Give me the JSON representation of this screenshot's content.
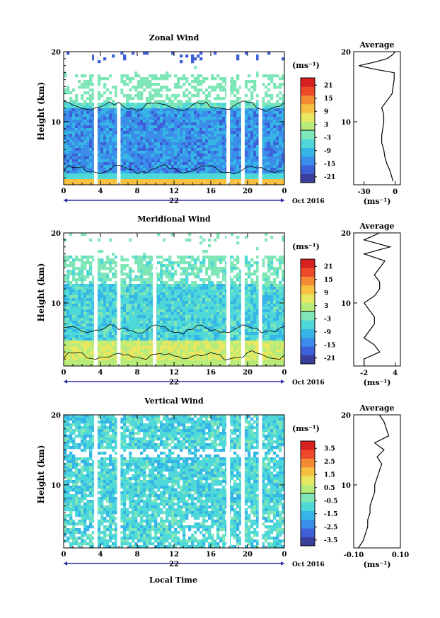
{
  "figure": {
    "time_axis_label": "Local Time",
    "date_label": "Oct 2016",
    "height_axis_label": "Height (km)",
    "unit_label": "(ms⁻¹)",
    "average_title": "Average"
  },
  "chart_data": [
    {
      "type": "heatmap",
      "title": "Zonal Wind",
      "xlabel": "",
      "ylabel": "Height (km)",
      "xticks": [
        "0",
        "4",
        "8",
        "12",
        "16",
        "20",
        "0"
      ],
      "date_tick": "22",
      "xlim": [
        0,
        24
      ],
      "ylim": [
        1,
        20
      ],
      "yticks": [
        "10",
        "20"
      ],
      "colorbar": {
        "label": "(ms⁻¹)",
        "range": [
          -24,
          24
        ],
        "ticks": [
          "21",
          "15",
          "9",
          "3",
          "-3",
          "-9",
          "-15",
          "-21"
        ],
        "colors": [
          "#3b3f9a",
          "#3d5fd8",
          "#3a8de8",
          "#35b6e6",
          "#4fd8d8",
          "#7fe6b8",
          "#b8ec7a",
          "#e8e860",
          "#f6c040",
          "#f48a32",
          "#ee4a2a",
          "#d82020"
        ]
      },
      "gaps_hours": [
        3.3,
        5.8,
        17.7,
        19.3,
        21.2
      ],
      "average_profile": {
        "title": "Average",
        "xticks": [
          "-30",
          "0"
        ],
        "xlim": [
          -40,
          5
        ],
        "height": [
          1.5,
          3,
          4,
          5,
          6,
          7,
          8,
          9,
          10,
          11,
          12,
          13,
          14,
          15,
          16,
          17,
          17.5,
          18,
          18.5,
          19,
          19.5,
          20
        ],
        "values": [
          -2,
          -5,
          -8,
          -10,
          -11,
          -13,
          -13,
          -12,
          -11,
          -11,
          -13,
          -8,
          -3,
          -2,
          -1,
          -1,
          -20,
          -35,
          -20,
          -8,
          -3,
          0
        ]
      }
    },
    {
      "type": "heatmap",
      "title": "Meridional Wind",
      "xlabel": "",
      "ylabel": "Height (km)",
      "xticks": [
        "0",
        "4",
        "8",
        "12",
        "16",
        "20",
        "0"
      ],
      "date_tick": "22",
      "xlim": [
        0,
        24
      ],
      "ylim": [
        1,
        20
      ],
      "yticks": [
        "10",
        "20"
      ],
      "colorbar": {
        "label": "(ms⁻¹)",
        "range": [
          -24,
          24
        ],
        "ticks": [
          "21",
          "15",
          "9",
          "3",
          "-3",
          "-9",
          "-15",
          "-21"
        ],
        "colors": [
          "#3b3f9a",
          "#3d5fd8",
          "#3a8de8",
          "#35b6e6",
          "#4fd8d8",
          "#7fe6b8",
          "#b8ec7a",
          "#e8e860",
          "#f6c040",
          "#f48a32",
          "#ee4a2a",
          "#d82020"
        ]
      },
      "gaps_hours": [
        3.3,
        5.8,
        9.7,
        17.7,
        19.3,
        21.2
      ],
      "average_profile": {
        "title": "Average",
        "xticks": [
          "-2",
          "4"
        ],
        "xlim": [
          -4,
          5
        ],
        "height": [
          1,
          2,
          3,
          4,
          5,
          6,
          7,
          8,
          9,
          10,
          11,
          12,
          13,
          14,
          15,
          16,
          17,
          18,
          19,
          20
        ],
        "values": [
          -2,
          -2,
          1,
          0,
          -2,
          -1,
          0,
          0,
          -1,
          -2,
          0,
          1,
          1,
          0,
          1,
          2,
          -2,
          3,
          -2,
          1
        ]
      }
    },
    {
      "type": "heatmap",
      "title": "Vertical Wind",
      "xlabel": "Local Time",
      "ylabel": "Height (km)",
      "xticks": [
        "0",
        "4",
        "8",
        "12",
        "16",
        "20",
        "0"
      ],
      "date_tick": "22",
      "xlim": [
        0,
        24
      ],
      "ylim": [
        1,
        20
      ],
      "yticks": [
        "10",
        "20"
      ],
      "colorbar": {
        "label": "(ms⁻¹)",
        "range": [
          -4,
          4
        ],
        "ticks": [
          "3.5",
          "2.5",
          "1.5",
          "0.5",
          "-0.5",
          "-1.5",
          "-2.5",
          "-3.5"
        ],
        "colors": [
          "#3b3f9a",
          "#3d5fd8",
          "#3a8de8",
          "#35b6e6",
          "#4fd8d8",
          "#7fe6b8",
          "#b8ec7a",
          "#e8e860",
          "#f6c040",
          "#f48a32",
          "#ee4a2a",
          "#d82020"
        ]
      },
      "gaps_hours": [
        3.3,
        5.8,
        17.7,
        19.3,
        21.2
      ],
      "average_profile": {
        "title": "Average",
        "xticks": [
          "-0.10",
          "0.10"
        ],
        "xlim": [
          -0.1,
          0.1
        ],
        "height": [
          1,
          2,
          3,
          4,
          5,
          6,
          7,
          8,
          9,
          10,
          11,
          12,
          13,
          14,
          15,
          16,
          17,
          18,
          19,
          20
        ],
        "values": [
          -0.08,
          -0.06,
          -0.05,
          -0.04,
          -0.04,
          -0.03,
          -0.03,
          -0.02,
          -0.01,
          -0.01,
          0.0,
          0.01,
          0.02,
          0.0,
          0.03,
          -0.01,
          0.05,
          0.04,
          0.03,
          0.01
        ]
      }
    }
  ]
}
